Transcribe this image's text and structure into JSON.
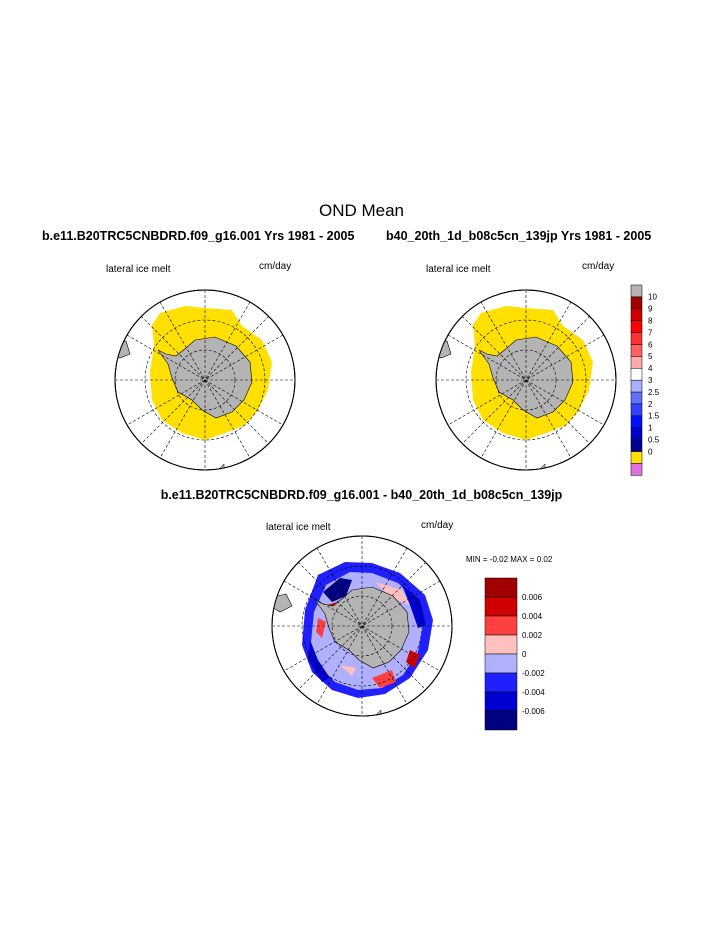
{
  "figure": {
    "title": "OND Mean",
    "left_case": "b.e11.B20TRC5CNBDRD.f09_g16.001  Yrs 1981 - 2005",
    "right_case": "b40_20th_1d_b08c5cn_139jp  Yrs 1981 - 2005",
    "diff_title": "b.e11.B20TRC5CNBDRD.f09_g16.001 - b40_20th_1d_b08c5cn_139jp"
  },
  "panels": {
    "left": {
      "variable": "lateral ice melt",
      "units": "cm/day"
    },
    "right": {
      "variable": "lateral ice melt",
      "units": "cm/day"
    },
    "diff": {
      "variable": "lateral ice melt",
      "units": "cm/day",
      "minmax": "MIN =   -0.02 MAX =    0.02"
    }
  },
  "colors": {
    "land": "#b4b4b4",
    "ice_melt_low": "#ffe000",
    "missing": "#b4b4b4",
    "below_zero": "#e070e0"
  },
  "main_colorbar": {
    "colors": [
      "#b4b4b4",
      "#a00000",
      "#cc0000",
      "#ff0000",
      "#ff3030",
      "#ff6060",
      "#ffaaaa",
      "#ffffff",
      "#aab0ff",
      "#6670ff",
      "#3344ff",
      "#0010ff",
      "#0000cc",
      "#000090",
      "#ffe000",
      "#e070e0"
    ],
    "labels": [
      "10",
      "9",
      "8",
      "7",
      "6",
      "5",
      "4",
      "3",
      "2.5",
      "2",
      "1.5",
      "1",
      "0.5",
      "0"
    ]
  },
  "diff_colorbar": {
    "colors": [
      "#a00000",
      "#d00000",
      "#ff4040",
      "#ffc0c0",
      "#b0b0ff",
      "#2020ff",
      "#0000d0",
      "#000080"
    ],
    "labels": [
      "0.006",
      "0.004",
      "0.002",
      "0",
      "-0.002",
      "-0.004",
      "-0.006"
    ]
  }
}
